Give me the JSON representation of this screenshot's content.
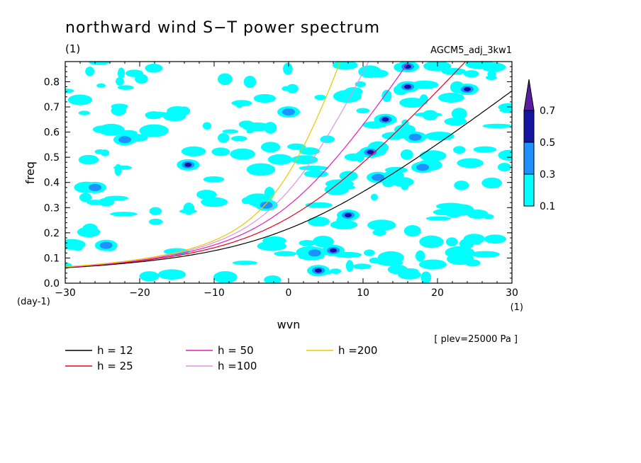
{
  "chart_data": {
    "type": "heatmap",
    "title": "northward wind S−T power spectrum",
    "subtitle_left": "(1)",
    "subtitle_right": "AGCM5_adj_3kw1",
    "xlabel": "wvn",
    "ylabel": "freq",
    "x_unit": "(1)",
    "y_unit": "(day-1)",
    "plev_note": "[ plev=25000 Pa ]",
    "xlim": [
      -30,
      30
    ],
    "ylim": [
      0.0,
      0.88
    ],
    "x_ticks": [
      -30,
      -20,
      -10,
      0,
      10,
      20,
      30
    ],
    "x_tick_labels": [
      "−30",
      "−20",
      "−10",
      "0",
      "10",
      "20",
      "30"
    ],
    "y_ticks": [
      0.0,
      0.1,
      0.2,
      0.3,
      0.4,
      0.5,
      0.6,
      0.7,
      0.8
    ],
    "y_tick_labels": [
      "0.0",
      "0.1",
      "0.2",
      "0.3",
      "0.4",
      "0.5",
      "0.6",
      "0.7",
      "0.8"
    ],
    "colorbar": {
      "levels": [
        0.1,
        0.3,
        0.5,
        0.7
      ],
      "labels": [
        "0.1",
        "0.3",
        "0.5",
        "0.7"
      ],
      "colors": [
        "#00ffff",
        "#1e90ff",
        "#1414a0",
        "#5a1ea0"
      ]
    },
    "contour_patches": [
      {
        "wvn": -24.5,
        "freq": 0.15,
        "level": 0.3
      },
      {
        "wvn": -26.0,
        "freq": 0.38,
        "level": 0.3
      },
      {
        "wvn": -22.0,
        "freq": 0.57,
        "level": 0.3
      },
      {
        "wvn": -13.5,
        "freq": 0.47,
        "level": 0.5
      },
      {
        "wvn": -3.0,
        "freq": 0.31,
        "level": 0.3
      },
      {
        "wvn": 0.0,
        "freq": 0.68,
        "level": 0.3
      },
      {
        "wvn": 3.5,
        "freq": 0.12,
        "level": 0.3
      },
      {
        "wvn": 4.0,
        "freq": 0.05,
        "level": 0.5
      },
      {
        "wvn": 6.0,
        "freq": 0.13,
        "level": 0.5
      },
      {
        "wvn": 8.0,
        "freq": 0.27,
        "level": 0.5
      },
      {
        "wvn": 12.0,
        "freq": 0.42,
        "level": 0.3
      },
      {
        "wvn": 11.0,
        "freq": 0.52,
        "level": 0.5
      },
      {
        "wvn": 13.0,
        "freq": 0.65,
        "level": 0.5
      },
      {
        "wvn": 17.0,
        "freq": 0.58,
        "level": 0.3
      },
      {
        "wvn": 16.0,
        "freq": 0.78,
        "level": 0.5
      },
      {
        "wvn": 16.0,
        "freq": 0.86,
        "level": 0.5
      },
      {
        "wvn": 24.0,
        "freq": 0.77,
        "level": 0.5
      },
      {
        "wvn": 18.0,
        "freq": 0.46,
        "level": 0.3
      }
    ],
    "series": [
      {
        "name": "h = 12",
        "color": "#000000",
        "equivalent_depth": 12
      },
      {
        "name": "h = 25",
        "color": "#e8001e",
        "equivalent_depth": 25
      },
      {
        "name": "h = 50",
        "color": "#e61eb4",
        "equivalent_depth": 50
      },
      {
        "name": "h =100",
        "color": "#dc96dc",
        "equivalent_depth": 100
      },
      {
        "name": "h =200",
        "color": "#ebc800",
        "equivalent_depth": 200
      }
    ],
    "legend_placement": "bottom"
  }
}
